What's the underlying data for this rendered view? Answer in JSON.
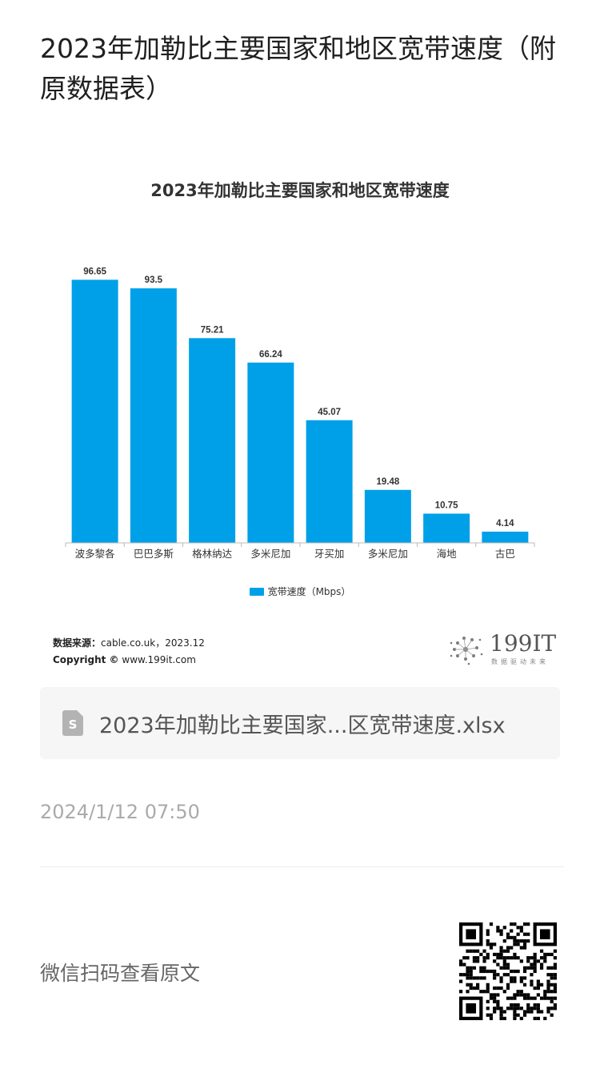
{
  "page": {
    "title": "2023年加勒比主要国家和地区宽带速度（附原数据表）"
  },
  "chart_data": {
    "type": "bar",
    "title": "2023年加勒比主要国家和地区宽带速度",
    "categories": [
      "波多黎各",
      "巴巴多斯",
      "格林纳达",
      "多米尼加",
      "牙买加",
      "多米尼加",
      "海地",
      "古巴"
    ],
    "series": [
      {
        "name": "宽带速度（Mbps）",
        "values": [
          96.65,
          93.5,
          75.21,
          66.24,
          45.07,
          19.48,
          10.75,
          4.14
        ],
        "color": "#00a0e9"
      }
    ],
    "value_labels": [
      "96.65",
      "93.5",
      "75.21",
      "66.24",
      "45.07",
      "19.48",
      "10.75",
      "4.14"
    ],
    "ylim": [
      0,
      100
    ],
    "xlabel": "",
    "ylabel": "",
    "grid": false,
    "legend_position": "bottom"
  },
  "source": {
    "label": "数据来源：",
    "text": "cable.co.uk，2023.12",
    "copyright_label": "Copyright ©",
    "copyright_text": "www.199it.com"
  },
  "logo": {
    "text": "199IT",
    "tagline": "数据驱动未来"
  },
  "attachment": {
    "file_name": "2023年加勒比主要国家...区宽带速度.xlsx",
    "icon": "spreadsheet-file-icon"
  },
  "meta": {
    "timestamp": "2024/1/12 07:50"
  },
  "footer": {
    "qr_hint": "微信扫码查看原文",
    "icon": "qr-code-icon"
  }
}
